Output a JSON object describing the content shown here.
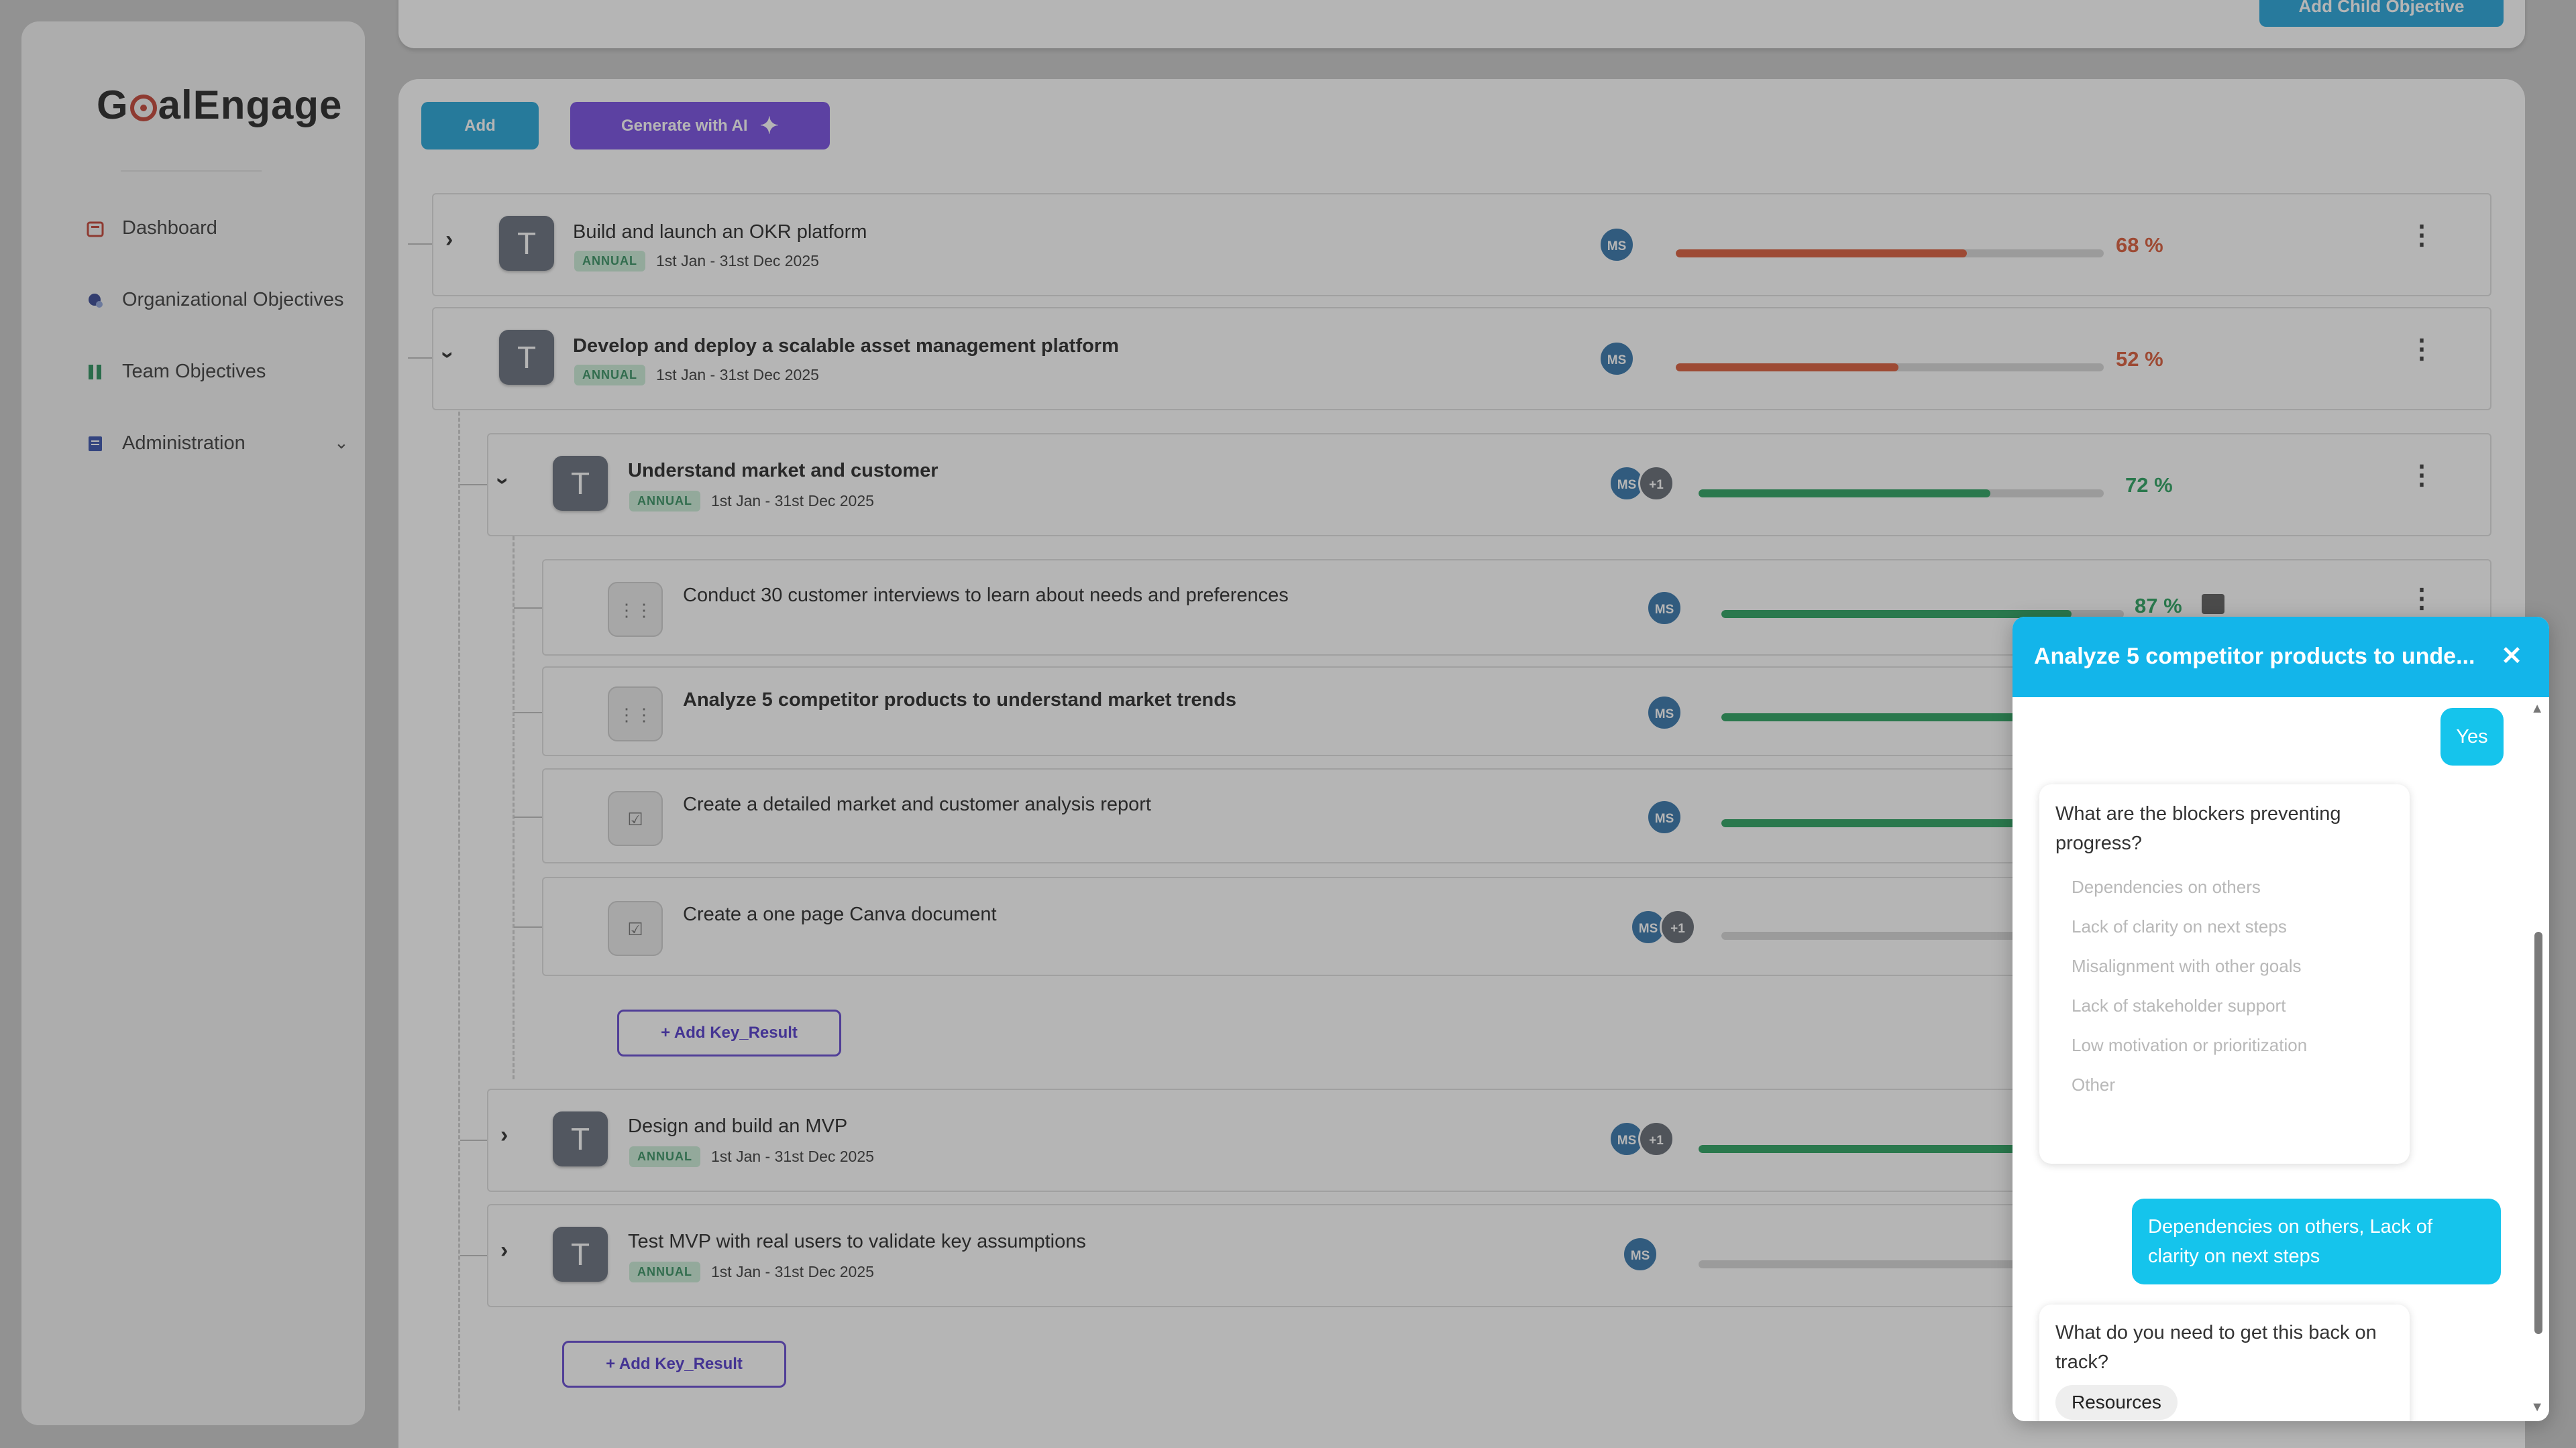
{
  "app": {
    "logo_prefix": "G",
    "logo_suffix": "alEngage"
  },
  "sidebar": {
    "items": [
      {
        "label": "Dashboard",
        "icon": "dashboard-icon",
        "color": "#c0392b"
      },
      {
        "label": "Organizational Objectives",
        "icon": "org-objectives-icon",
        "color": "#2c3e8f"
      },
      {
        "label": "Team Objectives",
        "icon": "team-objectives-icon",
        "color": "#1f8a55"
      },
      {
        "label": "Administration",
        "icon": "administration-icon",
        "color": "#2e4aa8"
      }
    ]
  },
  "top": {
    "add_child_label": "Add Child Objective"
  },
  "toolbar": {
    "add_label": "Add",
    "ai_label": "Generate with AI"
  },
  "objectives": [
    {
      "title": "Build and launch an OKR platform",
      "badge": "ANNUAL",
      "dates": "1st Jan - 31st Dec 2025",
      "owner": "MS",
      "progress": 68,
      "pct": "68 %",
      "color": "#d9532f"
    },
    {
      "title": "Develop and deploy a scalable asset management platform",
      "badge": "ANNUAL",
      "dates": "1st Jan - 31st Dec 2025",
      "owner": "MS",
      "progress": 52,
      "pct": "52 %",
      "color": "#d9532f"
    }
  ],
  "children": [
    {
      "title": "Understand market and customer",
      "badge": "ANNUAL",
      "dates": "1st Jan - 31st Dec 2025",
      "owner": "MS",
      "extra": "+1",
      "progress": 72,
      "pct": "72 %",
      "color": "#1f9d57"
    },
    {
      "title": "Design and build an MVP",
      "badge": "ANNUAL",
      "dates": "1st Jan - 31st Dec 2025",
      "owner": "MS",
      "extra": "+1",
      "progress": 100,
      "color": "#1f9d57"
    },
    {
      "title": "Test MVP with real users to validate key assumptions",
      "badge": "ANNUAL",
      "dates": "1st Jan - 31st Dec 2025",
      "owner": "MS",
      "progress": 0,
      "color": "#1f9d57"
    }
  ],
  "key_results": [
    {
      "title": "Conduct 30 customer interviews to learn about needs and preferences",
      "owner": "MS",
      "progress": 87,
      "pct": "87 %"
    },
    {
      "title": "Analyze 5 competitor products to understand market trends",
      "owner": "MS",
      "progress": 100
    },
    {
      "title": "Create a detailed market and customer analysis report",
      "owner": "MS",
      "progress": 100
    },
    {
      "title": "Create a one page Canva document",
      "owner": "MS",
      "extra": "+1",
      "progress": 0
    }
  ],
  "add_kr_label": "+ Add Key_Result",
  "chat": {
    "title": "Analyze 5 competitor products to unde...",
    "user_reply_1": "Yes",
    "question_1": "What are the blockers preventing progress?",
    "options": [
      "Dependencies on others",
      "Lack of clarity on next steps",
      "Misalignment with other goals",
      "Lack of stakeholder support",
      "Low motivation or prioritization",
      "Other"
    ],
    "user_reply_2": "Dependencies on others, Lack of clarity on next steps",
    "question_2": "What do you need to get this back on track?",
    "chip_1": "Resources"
  }
}
